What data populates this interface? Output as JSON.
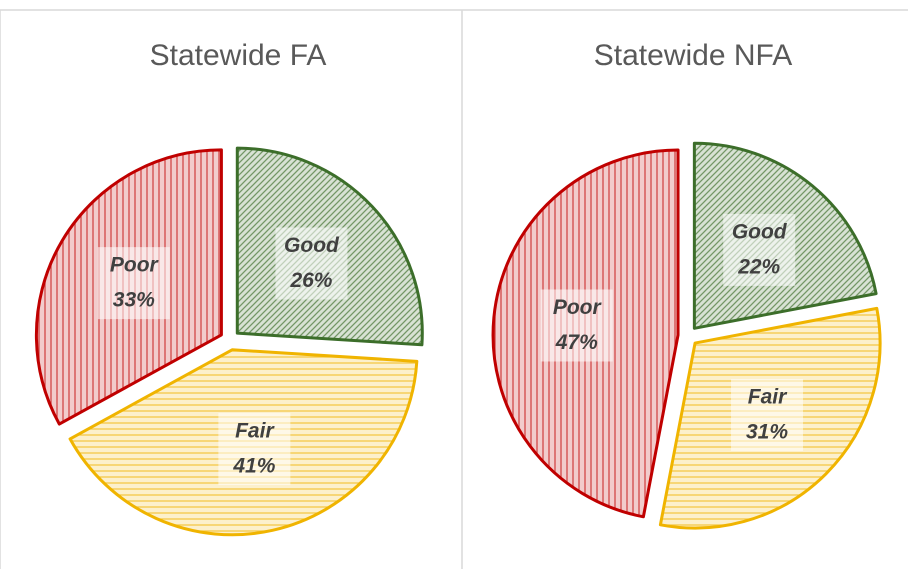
{
  "chart_data": [
    {
      "type": "pie",
      "title": "Statewide FA",
      "categories": [
        "Good",
        "Fair",
        "Poor"
      ],
      "values": [
        26,
        41,
        33
      ],
      "value_labels": [
        "26%",
        "41%",
        "33%"
      ],
      "colors": [
        "#3c6e2a",
        "#f0b400",
        "#c00000"
      ],
      "hatch": [
        "diagonal",
        "horizontal",
        "vertical"
      ]
    },
    {
      "type": "pie",
      "title": "Statewide NFA",
      "categories": [
        "Good",
        "Fair",
        "Poor"
      ],
      "values": [
        22,
        31,
        47
      ],
      "value_labels": [
        "22%",
        "31%",
        "47%"
      ],
      "colors": [
        "#3c6e2a",
        "#f0b400",
        "#c00000"
      ],
      "hatch": [
        "diagonal",
        "horizontal",
        "vertical"
      ]
    }
  ]
}
